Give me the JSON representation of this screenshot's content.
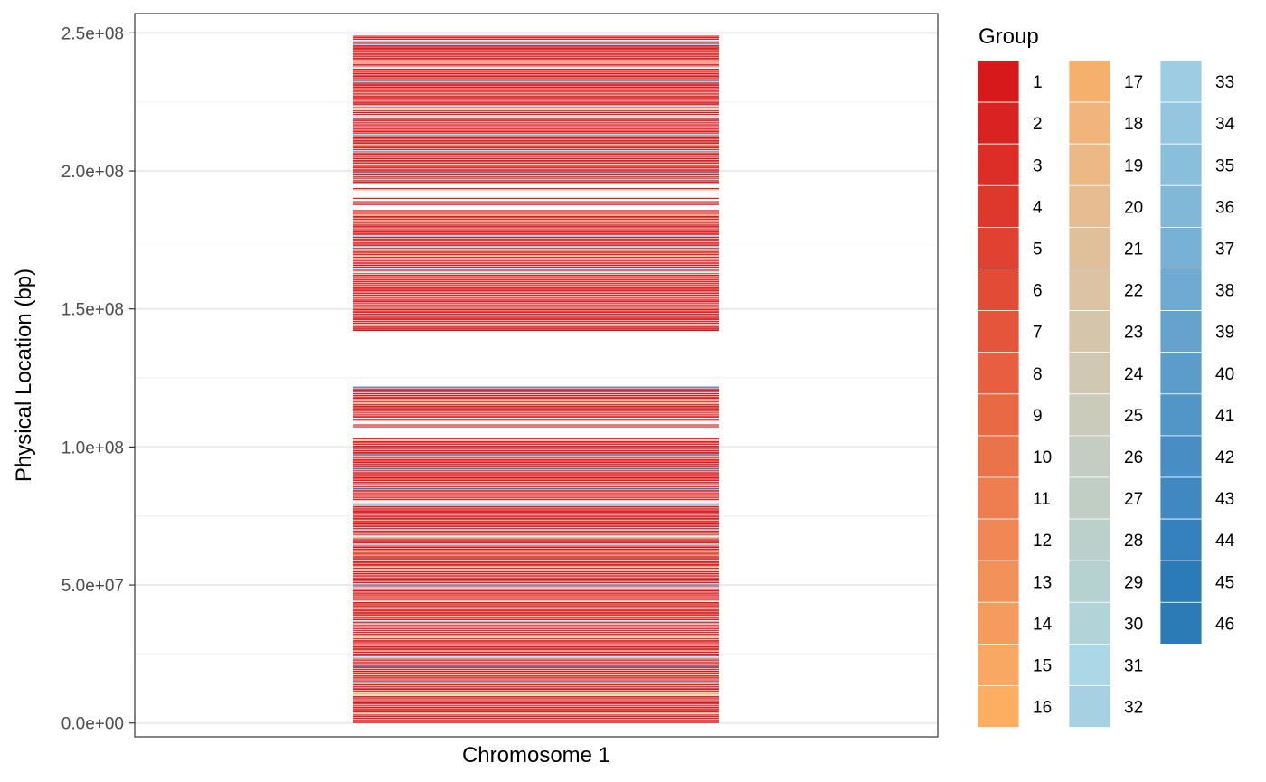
{
  "chart_data": {
    "type": "heatmap",
    "title": "",
    "xlabel": "Chromosome 1",
    "ylabel": "Physical Location (bp)",
    "x_categories": [
      "Chromosome 1"
    ],
    "ylim": [
      -5000000,
      257000000
    ],
    "y_ticks": [
      0,
      50000000,
      100000000,
      150000000,
      200000000,
      250000000
    ],
    "y_tick_labels": [
      "0.0e+00",
      "5.0e+07",
      "1.0e+08",
      "1.5e+08",
      "2.0e+08",
      "2.5e+08"
    ],
    "grid": true,
    "legend": {
      "title": "Group",
      "placement": "right",
      "columns": 3,
      "entries": [
        {
          "label": "1",
          "color": "#d7191c"
        },
        {
          "label": "2",
          "color": "#d92322"
        },
        {
          "label": "3",
          "color": "#dc2d27"
        },
        {
          "label": "4",
          "color": "#de372c"
        },
        {
          "label": "5",
          "color": "#e04131"
        },
        {
          "label": "6",
          "color": "#e24b36"
        },
        {
          "label": "7",
          "color": "#e5553b"
        },
        {
          "label": "8",
          "color": "#e75f40"
        },
        {
          "label": "9",
          "color": "#e96945"
        },
        {
          "label": "10",
          "color": "#eb734a"
        },
        {
          "label": "11",
          "color": "#ee7d4f"
        },
        {
          "label": "12",
          "color": "#f08754"
        },
        {
          "label": "13",
          "color": "#f29159"
        },
        {
          "label": "14",
          "color": "#f59b5e"
        },
        {
          "label": "15",
          "color": "#f8a863"
        },
        {
          "label": "16",
          "color": "#fdae61"
        },
        {
          "label": "17",
          "color": "#f6b06e"
        },
        {
          "label": "18",
          "color": "#f1b47a"
        },
        {
          "label": "19",
          "color": "#ebb886"
        },
        {
          "label": "20",
          "color": "#e6bc90"
        },
        {
          "label": "21",
          "color": "#e0c09a"
        },
        {
          "label": "22",
          "color": "#dbc3a3"
        },
        {
          "label": "23",
          "color": "#d5c5ab"
        },
        {
          "label": "24",
          "color": "#d0c8b3"
        },
        {
          "label": "25",
          "color": "#cbcbbb"
        },
        {
          "label": "26",
          "color": "#c5ccc1"
        },
        {
          "label": "27",
          "color": "#c0cec6"
        },
        {
          "label": "28",
          "color": "#bad0cb"
        },
        {
          "label": "29",
          "color": "#b5d2d1"
        },
        {
          "label": "30",
          "color": "#b0d4d8"
        },
        {
          "label": "31",
          "color": "#abd7e6"
        },
        {
          "label": "32",
          "color": "#a6d1e3"
        },
        {
          "label": "33",
          "color": "#9dcde2"
        },
        {
          "label": "34",
          "color": "#94c6df"
        },
        {
          "label": "35",
          "color": "#8abfdb"
        },
        {
          "label": "36",
          "color": "#81b8d8"
        },
        {
          "label": "37",
          "color": "#77b1d5"
        },
        {
          "label": "38",
          "color": "#6eaad1"
        },
        {
          "label": "39",
          "color": "#65a3ce"
        },
        {
          "label": "40",
          "color": "#5b9cca"
        },
        {
          "label": "41",
          "color": "#5295c7"
        },
        {
          "label": "42",
          "color": "#488ec4"
        },
        {
          "label": "43",
          "color": "#3f88c0"
        },
        {
          "label": "44",
          "color": "#3581bd"
        },
        {
          "label": "45",
          "color": "#2c7bb9"
        },
        {
          "label": "46",
          "color": "#2c7bb6"
        }
      ]
    },
    "segments": [
      {
        "start": 0,
        "end": 122000000
      },
      {
        "start": 142000000,
        "end": 249000000
      }
    ]
  }
}
